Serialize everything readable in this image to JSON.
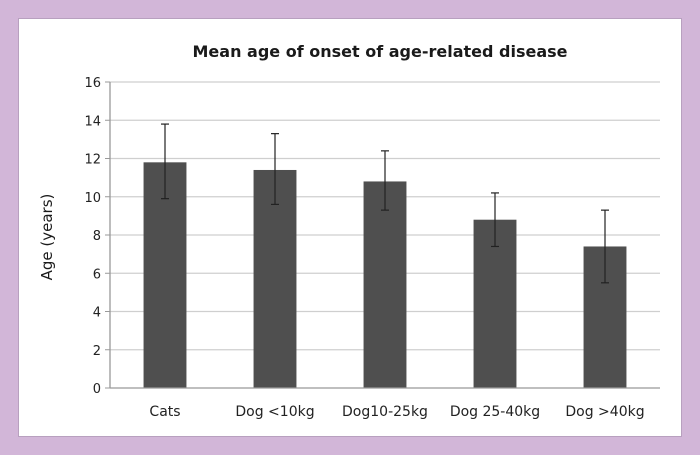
{
  "chart_data": {
    "type": "bar",
    "title": "Mean age of onset of age-related disease",
    "xlabel": "",
    "ylabel": "Age (years)",
    "ylim": [
      0,
      16
    ],
    "yticks": [
      0,
      2,
      4,
      6,
      8,
      10,
      12,
      14,
      16
    ],
    "ytick_labels": [
      "0",
      "2",
      "4",
      "6",
      "8",
      "10",
      "12",
      "14",
      "16"
    ],
    "categories": [
      "Cats",
      "Dog <10kg",
      "Dog10-25kg",
      "Dog 25-40kg",
      "Dog >40kg"
    ],
    "values": [
      11.8,
      11.4,
      10.8,
      8.8,
      7.4
    ],
    "error_low": [
      9.9,
      9.6,
      9.3,
      7.4,
      5.5
    ],
    "error_high": [
      13.8,
      13.3,
      12.4,
      10.2,
      9.3
    ],
    "grid": true,
    "colors": {
      "bar": "#4f4f4f",
      "grid": "#cfcfcf",
      "axis": "#999999",
      "background": "#d2b6d8"
    }
  }
}
